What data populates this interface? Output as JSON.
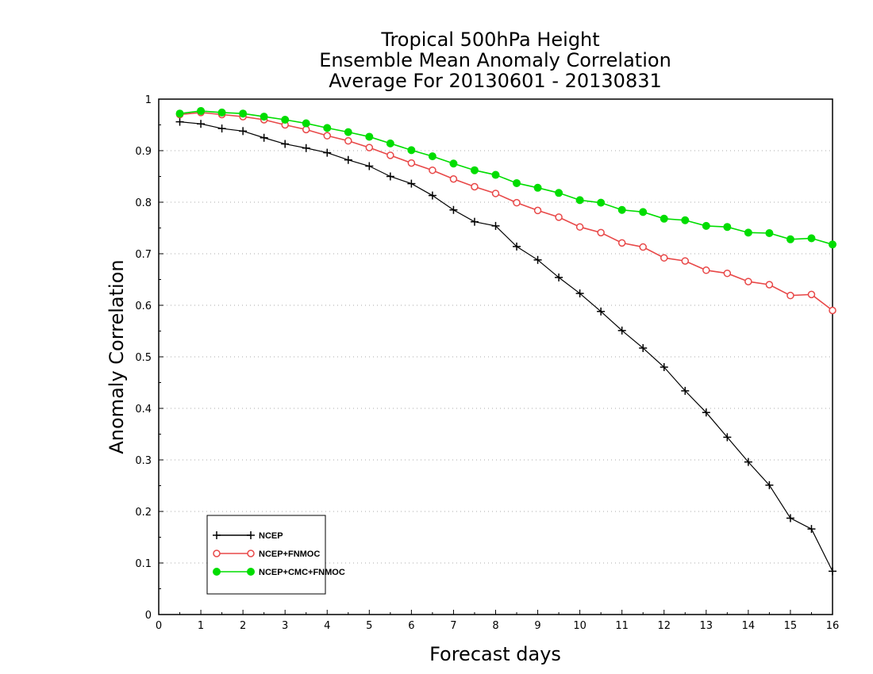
{
  "chart_data": {
    "type": "line",
    "title": [
      "Tropical 500hPa Height",
      "Ensemble Mean Anomaly Correlation",
      "Average For 20130601 - 20130831"
    ],
    "xlabel": "Forecast days",
    "ylabel": "Anomaly Correlation",
    "xlim": [
      0,
      16
    ],
    "ylim": [
      0,
      1
    ],
    "xticks": [
      "0",
      "1",
      "2",
      "3",
      "4",
      "5",
      "6",
      "7",
      "8",
      "9",
      "10",
      "11",
      "12",
      "13",
      "14",
      "15",
      "16"
    ],
    "yticks": [
      "0",
      "0.1",
      "0.2",
      "0.3",
      "0.4",
      "0.5",
      "0.6",
      "0.7",
      "0.8",
      "0.9",
      "1"
    ],
    "grid": "horizontal dotted",
    "legend_position": "bottom-left",
    "x": [
      0.5,
      1,
      1.5,
      2,
      2.5,
      3,
      3.5,
      4,
      4.5,
      5,
      5.5,
      6,
      6.5,
      7,
      7.5,
      8,
      8.5,
      9,
      9.5,
      10,
      10.5,
      11,
      11.5,
      12,
      12.5,
      13,
      13.5,
      14,
      14.5,
      15,
      15.5,
      16
    ],
    "series": [
      {
        "name": "NCEP",
        "color": "#000000",
        "marker": "plus",
        "values": [
          0.956,
          0.952,
          0.943,
          0.938,
          0.925,
          0.913,
          0.905,
          0.896,
          0.882,
          0.87,
          0.85,
          0.836,
          0.813,
          0.785,
          0.762,
          0.754,
          0.714,
          0.688,
          0.654,
          0.623,
          0.588,
          0.551,
          0.517,
          0.48,
          0.434,
          0.392,
          0.344,
          0.296,
          0.251,
          0.187,
          0.166,
          0.084
        ]
      },
      {
        "name": "NCEP+FNMOC",
        "color": "#e84848",
        "marker": "open-circle",
        "values": [
          0.97,
          0.974,
          0.97,
          0.966,
          0.96,
          0.95,
          0.941,
          0.929,
          0.919,
          0.906,
          0.891,
          0.876,
          0.862,
          0.845,
          0.83,
          0.817,
          0.799,
          0.784,
          0.771,
          0.752,
          0.741,
          0.721,
          0.713,
          0.692,
          0.686,
          0.668,
          0.662,
          0.646,
          0.64,
          0.619,
          0.621,
          0.59
        ]
      },
      {
        "name": "NCEP+CMC+FNMOC",
        "color": "#00dd00",
        "marker": "filled-circle",
        "values": [
          0.972,
          0.977,
          0.974,
          0.972,
          0.966,
          0.96,
          0.953,
          0.944,
          0.936,
          0.927,
          0.914,
          0.901,
          0.889,
          0.875,
          0.862,
          0.853,
          0.837,
          0.828,
          0.818,
          0.804,
          0.799,
          0.785,
          0.781,
          0.768,
          0.765,
          0.754,
          0.752,
          0.741,
          0.74,
          0.728,
          0.73,
          0.718
        ]
      }
    ]
  }
}
